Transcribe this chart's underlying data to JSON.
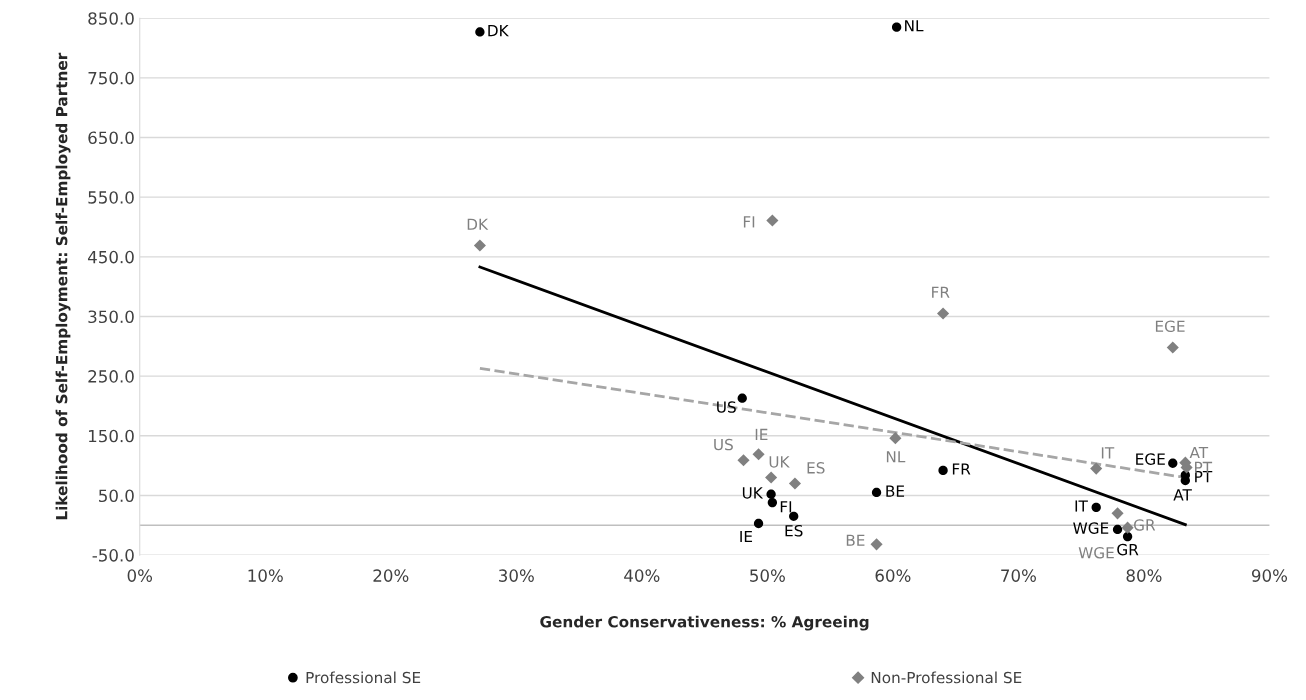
{
  "chart_data": {
    "type": "scatter",
    "xlabel": "Gender Conservativeness: % Agreeing",
    "ylabel": "Likelihood of Self-Employment: Self-Employed Partner",
    "xlim": [
      0,
      90
    ],
    "ylim": [
      -50,
      850
    ],
    "xticks": [
      {
        "value": 0,
        "label": "0%"
      },
      {
        "value": 10,
        "label": "10%"
      },
      {
        "value": 20,
        "label": "20%"
      },
      {
        "value": 30,
        "label": "30%"
      },
      {
        "value": 40,
        "label": "40%"
      },
      {
        "value": 50,
        "label": "50%"
      },
      {
        "value": 60,
        "label": "60%"
      },
      {
        "value": 70,
        "label": "70%"
      },
      {
        "value": 80,
        "label": "80%"
      },
      {
        "value": 90,
        "label": "90%"
      }
    ],
    "yticks": [
      {
        "value": -50,
        "label": "-50.0"
      },
      {
        "value": 50,
        "label": "50.0"
      },
      {
        "value": 150,
        "label": "150.0"
      },
      {
        "value": 250,
        "label": "250.0"
      },
      {
        "value": 350,
        "label": "350.0"
      },
      {
        "value": 450,
        "label": "450.0"
      },
      {
        "value": 550,
        "label": "550.0"
      },
      {
        "value": 650,
        "label": "650.0"
      },
      {
        "value": 750,
        "label": "750.0"
      },
      {
        "value": 850,
        "label": "850.0"
      }
    ],
    "grid": "y",
    "legend": "bottom",
    "ref_lines": [
      {
        "axis": "y",
        "value": 0,
        "color": "#bfbfbf"
      }
    ],
    "series": [
      {
        "name": "Professional SE",
        "marker": "circle",
        "color": "#000000",
        "x": [
          27.1,
          60.3,
          48.0,
          50.3,
          50.4,
          49.3,
          52.1,
          58.7,
          64.0,
          76.2,
          77.9,
          78.7,
          82.3,
          83.3,
          83.3
        ],
        "values": [
          827,
          835,
          213,
          52,
          38,
          3,
          15,
          55,
          92,
          30,
          -7,
          -19,
          104,
          84,
          75
        ]
      },
      {
        "name": "Non-Professional SE",
        "marker": "diamond",
        "color": "#808080",
        "x": [
          27.1,
          50.4,
          64.0,
          60.2,
          82.3,
          48.1,
          49.3,
          50.3,
          52.2,
          58.7,
          76.2,
          78.7,
          77.9,
          83.3,
          83.4
        ],
        "values": [
          469,
          511,
          355,
          146,
          298,
          109,
          119,
          80,
          70,
          -32,
          95,
          -4,
          20,
          105,
          97
        ]
      },
      {
        "type": "line",
        "line_style": "solid",
        "color": "#000000",
        "x": [
          27.1,
          83.3
        ],
        "values": [
          433,
          1
        ]
      },
      {
        "type": "line",
        "line_style": "dashed",
        "color": "#a6a6a6",
        "x": [
          27.1,
          83.3
        ],
        "values": [
          263,
          80
        ]
      }
    ],
    "annotations": [
      {
        "text": "DK",
        "x": 27.1,
        "y": 827
      },
      {
        "text": "NL",
        "x": 60.3,
        "y": 835
      },
      {
        "text": "US",
        "x": 48.0,
        "y": 213
      },
      {
        "text": "UK",
        "x": 50.3,
        "y": 52
      },
      {
        "text": "FI",
        "x": 50.4,
        "y": 38
      },
      {
        "text": "IE",
        "x": 49.3,
        "y": 3
      },
      {
        "text": "ES",
        "x": 52.1,
        "y": 15
      },
      {
        "text": "BE",
        "x": 58.7,
        "y": 55
      },
      {
        "text": "FR",
        "x": 64.0,
        "y": 92
      },
      {
        "text": "IT",
        "x": 76.2,
        "y": 30
      },
      {
        "text": "WGE",
        "x": 77.9,
        "y": -7
      },
      {
        "text": "GR",
        "x": 78.7,
        "y": -19
      },
      {
        "text": "EGE",
        "x": 82.3,
        "y": 104
      },
      {
        "text": "PT",
        "x": 83.3,
        "y": 84
      },
      {
        "text": "AT",
        "x": 83.3,
        "y": 75
      },
      {
        "text": "DK",
        "x": 27.1,
        "y": 469
      },
      {
        "text": "FI",
        "x": 50.4,
        "y": 511
      },
      {
        "text": "FR",
        "x": 64.0,
        "y": 355
      },
      {
        "text": "NL",
        "x": 60.2,
        "y": 146
      },
      {
        "text": "EGE",
        "x": 82.3,
        "y": 298
      },
      {
        "text": "US",
        "x": 48.1,
        "y": 109
      },
      {
        "text": "IE",
        "x": 49.3,
        "y": 119
      },
      {
        "text": "UK",
        "x": 50.3,
        "y": 80
      },
      {
        "text": "ES",
        "x": 52.2,
        "y": 70
      },
      {
        "text": "BE",
        "x": 58.7,
        "y": -32
      },
      {
        "text": "IT",
        "x": 76.2,
        "y": 95
      },
      {
        "text": "GR",
        "x": 78.7,
        "y": -4
      },
      {
        "text": "WGE",
        "x": 77.9,
        "y": 20
      },
      {
        "text": "AT",
        "x": 83.3,
        "y": 105
      },
      {
        "text": "PT",
        "x": 83.4,
        "y": 97
      }
    ]
  }
}
